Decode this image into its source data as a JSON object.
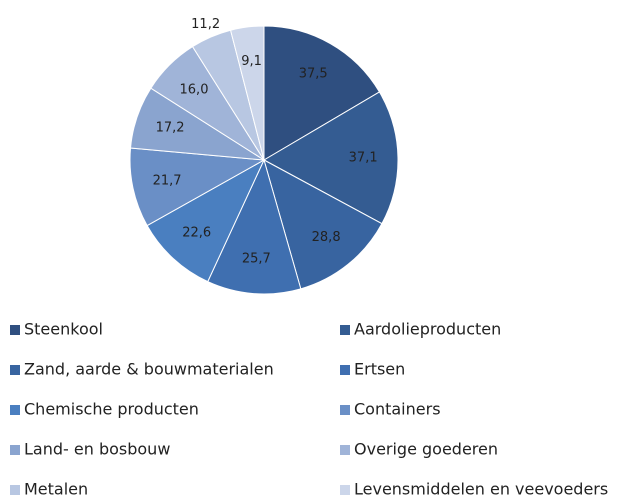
{
  "chart_data": {
    "type": "pie",
    "categories": [
      "Steenkool",
      "Aardolieproducten",
      "Zand, aarde & bouwmaterialen",
      "Ertsen",
      "Chemische producten",
      "Containers",
      "Land- en bosbouw",
      "Overige goederen",
      "Metalen",
      "Levensmiddelen en veevoeders"
    ],
    "values": [
      37.5,
      37.1,
      28.8,
      25.7,
      22.6,
      21.7,
      17.2,
      16.0,
      11.2,
      9.1
    ],
    "value_labels": [
      "37,5",
      "37,1",
      "28,8",
      "25,7",
      "22,6",
      "21,7",
      "17,2",
      "16,0",
      "11,2",
      "9,1"
    ],
    "colors": [
      "#2f4f80",
      "#345c92",
      "#3864a0",
      "#3f6fb0",
      "#4a7fc0",
      "#6a8fc6",
      "#8aa4cf",
      "#a0b4d8",
      "#b8c7e2",
      "#ccd6ea"
    ],
    "legend": "bottom"
  }
}
